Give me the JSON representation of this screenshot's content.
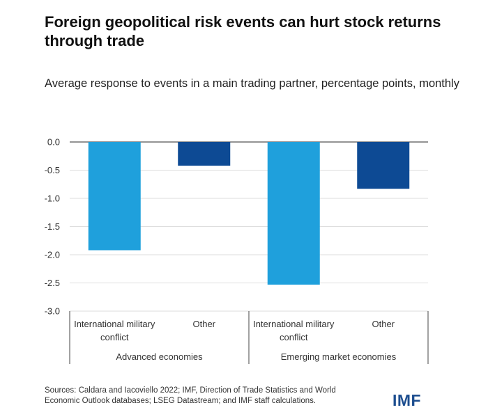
{
  "title": "Foreign geopolitical risk events can hurt stock returns through trade",
  "subtitle": "Average response to events in a main trading partner, percentage points, monthly",
  "source": "Sources: Caldara and Iacoviello 2022; IMF, Direction of Trade Statistics and World Economic Outlook databases; LSEG Datastream; and IMF staff calculations.",
  "logo_text": "IMF",
  "colors": {
    "international_military_conflict": "#1fa0dc",
    "other": "#0d4a94"
  },
  "chart_data": {
    "type": "bar",
    "title": "Foreign geopolitical risk events can hurt stock returns through trade",
    "subtitle": "Average response to events in a main trading partner, percentage points, monthly",
    "ylim": [
      -3.0,
      0.0
    ],
    "yticks": [
      0.0,
      -0.5,
      -1.0,
      -1.5,
      -2.0,
      -2.5,
      -3.0
    ],
    "ytick_labels": [
      "0.0",
      "-0.5",
      "-1.0",
      "-1.5",
      "-2.0",
      "-2.5",
      "-3.0"
    ],
    "grid": true,
    "groups": [
      {
        "label": "Advanced economies",
        "bars": [
          {
            "category": "International military conflict",
            "category_lines": [
              "International military",
              "conflict"
            ],
            "value": -1.92,
            "color": "#1fa0dc"
          },
          {
            "category": "Other",
            "category_lines": [
              "Other"
            ],
            "value": -0.42,
            "color": "#0d4a94"
          }
        ]
      },
      {
        "label": "Emerging market economies",
        "bars": [
          {
            "category": "International military conflict",
            "category_lines": [
              "International military",
              "conflict"
            ],
            "value": -2.53,
            "color": "#1fa0dc"
          },
          {
            "category": "Other",
            "category_lines": [
              "Other"
            ],
            "value": -0.83,
            "color": "#0d4a94"
          }
        ]
      }
    ]
  }
}
